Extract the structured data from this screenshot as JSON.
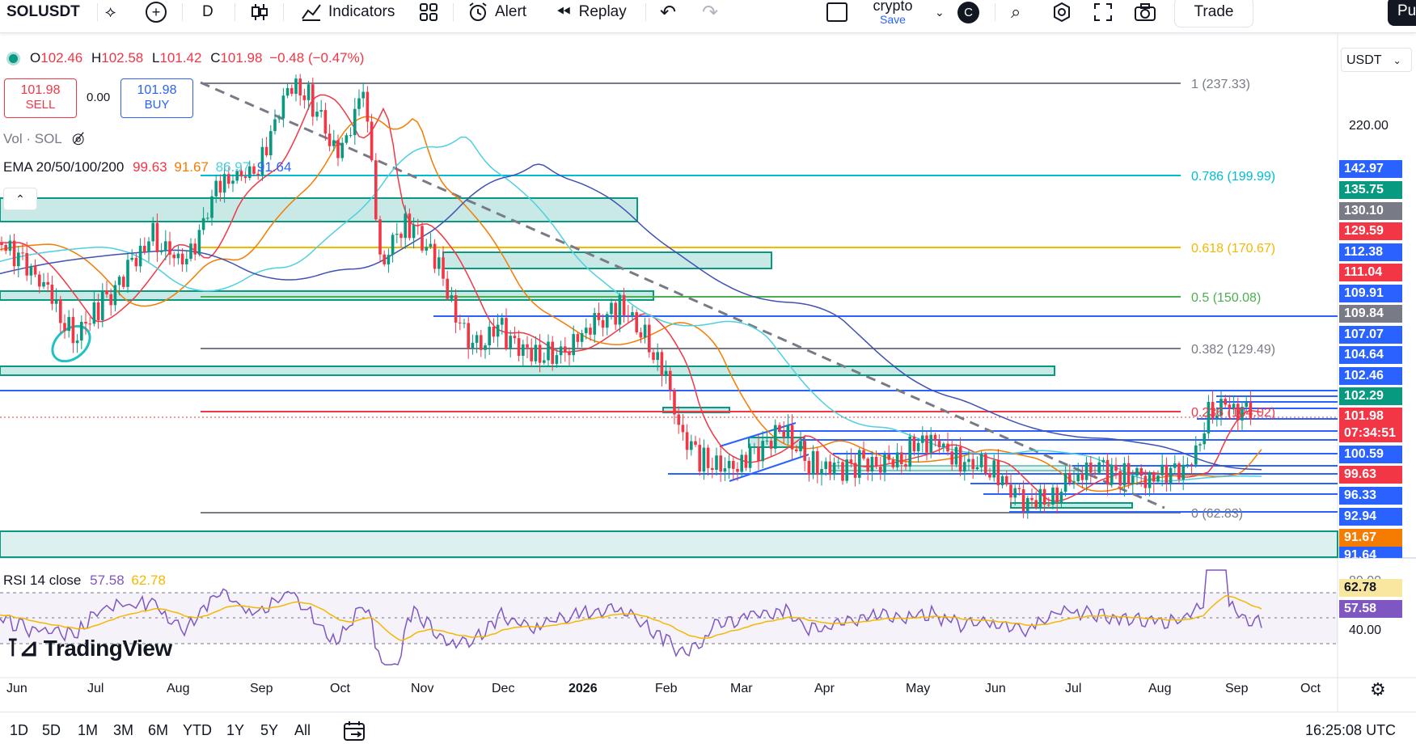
{
  "toolbar": {
    "symbol": "SOLUSDT",
    "interval": "D",
    "indicators": "Indicators",
    "alert": "Alert",
    "replay": "Replay",
    "layout_name": "crypto",
    "layout_save": "Save",
    "avatar_letter": "C",
    "trade": "Trade",
    "publish_partial": "Pu"
  },
  "legend": {
    "ohlc": {
      "o_label": "O",
      "o": "102.46",
      "h_label": "H",
      "h": "102.58",
      "l_label": "L",
      "l": "101.42",
      "c_label": "C",
      "c": "101.98",
      "change": "−0.48 (−0.47%)"
    },
    "sell_price": "101.98",
    "sell_label": "SELL",
    "spread": "0.00",
    "buy_price": "101.98",
    "buy_label": "BUY",
    "vol": "Vol · SOL",
    "ema_title": "EMA 20/50/100/200",
    "ema_values": [
      "99.63",
      "91.67",
      "86.97",
      "91.64"
    ],
    "rsi_title": "RSI 14 close",
    "rsi_values": [
      "57.58",
      "62.78"
    ]
  },
  "currency": "USDT",
  "axis": {
    "top_label": "220.00",
    "rsi_labels": [
      "80.00",
      "40.00"
    ]
  },
  "price_tags": [
    {
      "value": "142.97",
      "color": "#2962ff"
    },
    {
      "value": "135.75",
      "color": "#089981"
    },
    {
      "value": "130.10",
      "color": "#787b86"
    },
    {
      "value": "129.59",
      "color": "#f23645"
    },
    {
      "value": "112.38",
      "color": "#2962ff"
    },
    {
      "value": "111.04",
      "color": "#f23645"
    },
    {
      "value": "109.91",
      "color": "#2962ff"
    },
    {
      "value": "109.84",
      "color": "#787b86"
    },
    {
      "value": "107.07",
      "color": "#2962ff"
    },
    {
      "value": "104.64",
      "color": "#2962ff"
    },
    {
      "value": "102.46",
      "color": "#2962ff"
    },
    {
      "value": "102.29",
      "color": "#089981"
    },
    {
      "value": "101.98",
      "color": "#f23645"
    },
    {
      "value": "07:34:51",
      "color": "#f23645"
    },
    {
      "value": "100.59",
      "color": "#2962ff"
    },
    {
      "value": "99.63",
      "color": "#f23645"
    },
    {
      "value": "96.33",
      "color": "#2962ff"
    },
    {
      "value": "92.94",
      "color": "#2962ff"
    },
    {
      "value": "91.67",
      "color": "#f57c00"
    },
    {
      "value": "91.64",
      "color": "#2962ff"
    }
  ],
  "rsi_tags": [
    {
      "value": "62.78",
      "color": "#f9e79f"
    },
    {
      "value": "57.58",
      "color": "#7e57c2"
    }
  ],
  "fib": [
    {
      "label": "1 (237.33)",
      "color": "#787b86"
    },
    {
      "label": "0.786 (199.99)",
      "color": "#00bcd4"
    },
    {
      "label": "0.618 (170.67)",
      "color": "#f5b800"
    },
    {
      "label": "0.5 (150.08)",
      "color": "#4caf50"
    },
    {
      "label": "0.382 (129.49)",
      "color": "#787b86"
    },
    {
      "label": "0.236 (104.02)",
      "color": "#f23645"
    },
    {
      "label": "0 (62.83)",
      "color": "#787b86"
    }
  ],
  "months": [
    "Jun",
    "Jul",
    "Aug",
    "Sep",
    "Oct",
    "Nov",
    "Dec",
    "2026",
    "Feb",
    "Mar",
    "Apr",
    "May",
    "Jun",
    "Jul",
    "Aug",
    "Sep",
    "Oct"
  ],
  "periods": [
    "1D",
    "5D",
    "1M",
    "3M",
    "6M",
    "YTD",
    "1Y",
    "5Y",
    "All"
  ],
  "clock": "16:25:08 UTC",
  "watermark": "TradingView"
}
